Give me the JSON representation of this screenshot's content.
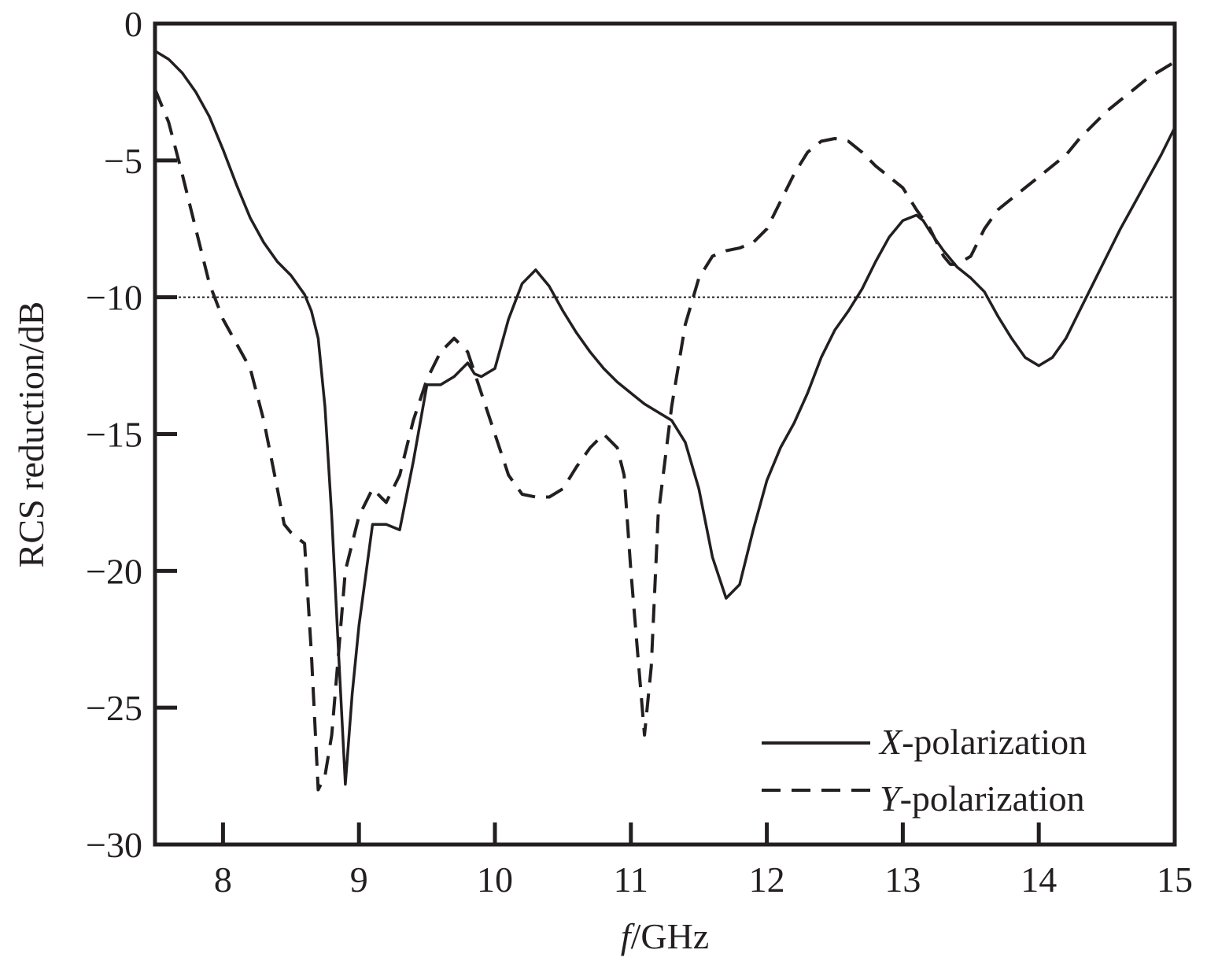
{
  "chart_data": {
    "type": "line",
    "xlabel_italic": "f",
    "xlabel_rest": "/GHz",
    "ylabel": "RCS reduction/dB",
    "xlim": [
      7.5,
      15
    ],
    "ylim": [
      -30,
      0
    ],
    "xticks": [
      8,
      9,
      10,
      11,
      12,
      13,
      14,
      15
    ],
    "xtick_labels": [
      "8",
      "9",
      "10",
      "11",
      "12",
      "13",
      "14",
      "15"
    ],
    "yticks": [
      0,
      -5,
      -10,
      -15,
      -20,
      -25,
      -30
    ],
    "ytick_labels": [
      "0",
      "−5",
      "−10",
      "−15",
      "−20",
      "−25",
      "−30"
    ],
    "reference_line": {
      "y": -10,
      "style": "dotted"
    },
    "grid": false,
    "legend_position": "bottom-right",
    "series": [
      {
        "name_italic": "X",
        "name_rest": "-polarization",
        "style": "solid",
        "color": "#231f20",
        "x": [
          7.5,
          7.6,
          7.7,
          7.8,
          7.9,
          8.0,
          8.1,
          8.2,
          8.3,
          8.4,
          8.5,
          8.6,
          8.65,
          8.7,
          8.75,
          8.8,
          8.85,
          8.9,
          8.95,
          9.0,
          9.1,
          9.2,
          9.3,
          9.4,
          9.5,
          9.6,
          9.7,
          9.8,
          9.85,
          9.9,
          10.0,
          10.1,
          10.2,
          10.3,
          10.4,
          10.5,
          10.6,
          10.7,
          10.8,
          10.9,
          11.0,
          11.1,
          11.2,
          11.3,
          11.4,
          11.5,
          11.6,
          11.7,
          11.8,
          11.9,
          12.0,
          12.1,
          12.2,
          12.3,
          12.4,
          12.5,
          12.6,
          12.7,
          12.8,
          12.9,
          13.0,
          13.1,
          13.15,
          13.2,
          13.3,
          13.4,
          13.5,
          13.6,
          13.7,
          13.8,
          13.9,
          14.0,
          14.1,
          14.2,
          14.3,
          14.4,
          14.5,
          14.6,
          14.7,
          14.8,
          14.9,
          15.0
        ],
        "y": [
          -1.0,
          -1.3,
          -1.8,
          -2.5,
          -3.4,
          -4.6,
          -5.9,
          -7.1,
          -8.0,
          -8.7,
          -9.2,
          -9.9,
          -10.5,
          -11.5,
          -14.0,
          -18.0,
          -23.0,
          -27.8,
          -24.5,
          -22.0,
          -18.3,
          -18.3,
          -18.5,
          -16.0,
          -13.2,
          -13.2,
          -12.9,
          -12.4,
          -12.8,
          -12.9,
          -12.6,
          -10.8,
          -9.5,
          -9.0,
          -9.6,
          -10.5,
          -11.3,
          -12.0,
          -12.6,
          -13.1,
          -13.5,
          -13.9,
          -14.2,
          -14.5,
          -15.3,
          -17.0,
          -19.5,
          -21.0,
          -20.5,
          -18.5,
          -16.7,
          -15.5,
          -14.6,
          -13.5,
          -12.2,
          -11.2,
          -10.5,
          -9.7,
          -8.7,
          -7.8,
          -7.2,
          -7.0,
          -7.2,
          -7.6,
          -8.3,
          -8.9,
          -9.3,
          -9.8,
          -10.7,
          -11.5,
          -12.2,
          -12.5,
          -12.2,
          -11.5,
          -10.5,
          -9.5,
          -8.5,
          -7.5,
          -6.6,
          -5.7,
          -4.8,
          -3.8
        ]
      },
      {
        "name_italic": "Y",
        "name_rest": "-polarization",
        "style": "dashed",
        "color": "#231f20",
        "x": [
          7.5,
          7.6,
          7.7,
          7.8,
          7.9,
          8.0,
          8.1,
          8.2,
          8.3,
          8.4,
          8.45,
          8.5,
          8.6,
          8.65,
          8.7,
          8.75,
          8.8,
          8.85,
          8.9,
          9.0,
          9.1,
          9.2,
          9.3,
          9.4,
          9.5,
          9.6,
          9.7,
          9.8,
          9.9,
          10.0,
          10.1,
          10.2,
          10.3,
          10.4,
          10.5,
          10.6,
          10.7,
          10.8,
          10.9,
          10.95,
          11.0,
          11.05,
          11.1,
          11.15,
          11.2,
          11.3,
          11.4,
          11.5,
          11.6,
          11.7,
          11.8,
          11.9,
          12.0,
          12.1,
          12.2,
          12.3,
          12.4,
          12.5,
          12.6,
          12.7,
          12.8,
          12.9,
          13.0,
          13.1,
          13.2,
          13.3,
          13.35,
          13.4,
          13.5,
          13.6,
          13.7,
          13.8,
          13.9,
          14.0,
          14.1,
          14.2,
          14.3,
          14.4,
          14.5,
          14.6,
          14.7,
          14.8,
          14.9,
          15.0
        ],
        "y": [
          -2.4,
          -3.6,
          -5.5,
          -7.5,
          -9.5,
          -10.8,
          -11.7,
          -12.6,
          -14.5,
          -17.0,
          -18.3,
          -18.6,
          -19.0,
          -23.0,
          -28.0,
          -27.5,
          -26.0,
          -23.0,
          -20.0,
          -18.0,
          -17.0,
          -17.5,
          -16.5,
          -14.5,
          -13.0,
          -12.0,
          -11.5,
          -12.0,
          -13.5,
          -15.0,
          -16.5,
          -17.2,
          -17.3,
          -17.3,
          -17.0,
          -16.2,
          -15.5,
          -15.0,
          -15.5,
          -16.5,
          -20.0,
          -23.0,
          -26.0,
          -23.5,
          -18.0,
          -14.0,
          -11.0,
          -9.3,
          -8.5,
          -8.3,
          -8.2,
          -8.0,
          -7.5,
          -6.5,
          -5.5,
          -4.7,
          -4.3,
          -4.2,
          -4.3,
          -4.7,
          -5.2,
          -5.6,
          -6.0,
          -6.8,
          -7.5,
          -8.5,
          -8.8,
          -8.8,
          -8.5,
          -7.5,
          -6.8,
          -6.4,
          -6.0,
          -5.6,
          -5.2,
          -4.8,
          -4.2,
          -3.7,
          -3.2,
          -2.8,
          -2.4,
          -2.0,
          -1.7,
          -1.4
        ]
      }
    ]
  }
}
